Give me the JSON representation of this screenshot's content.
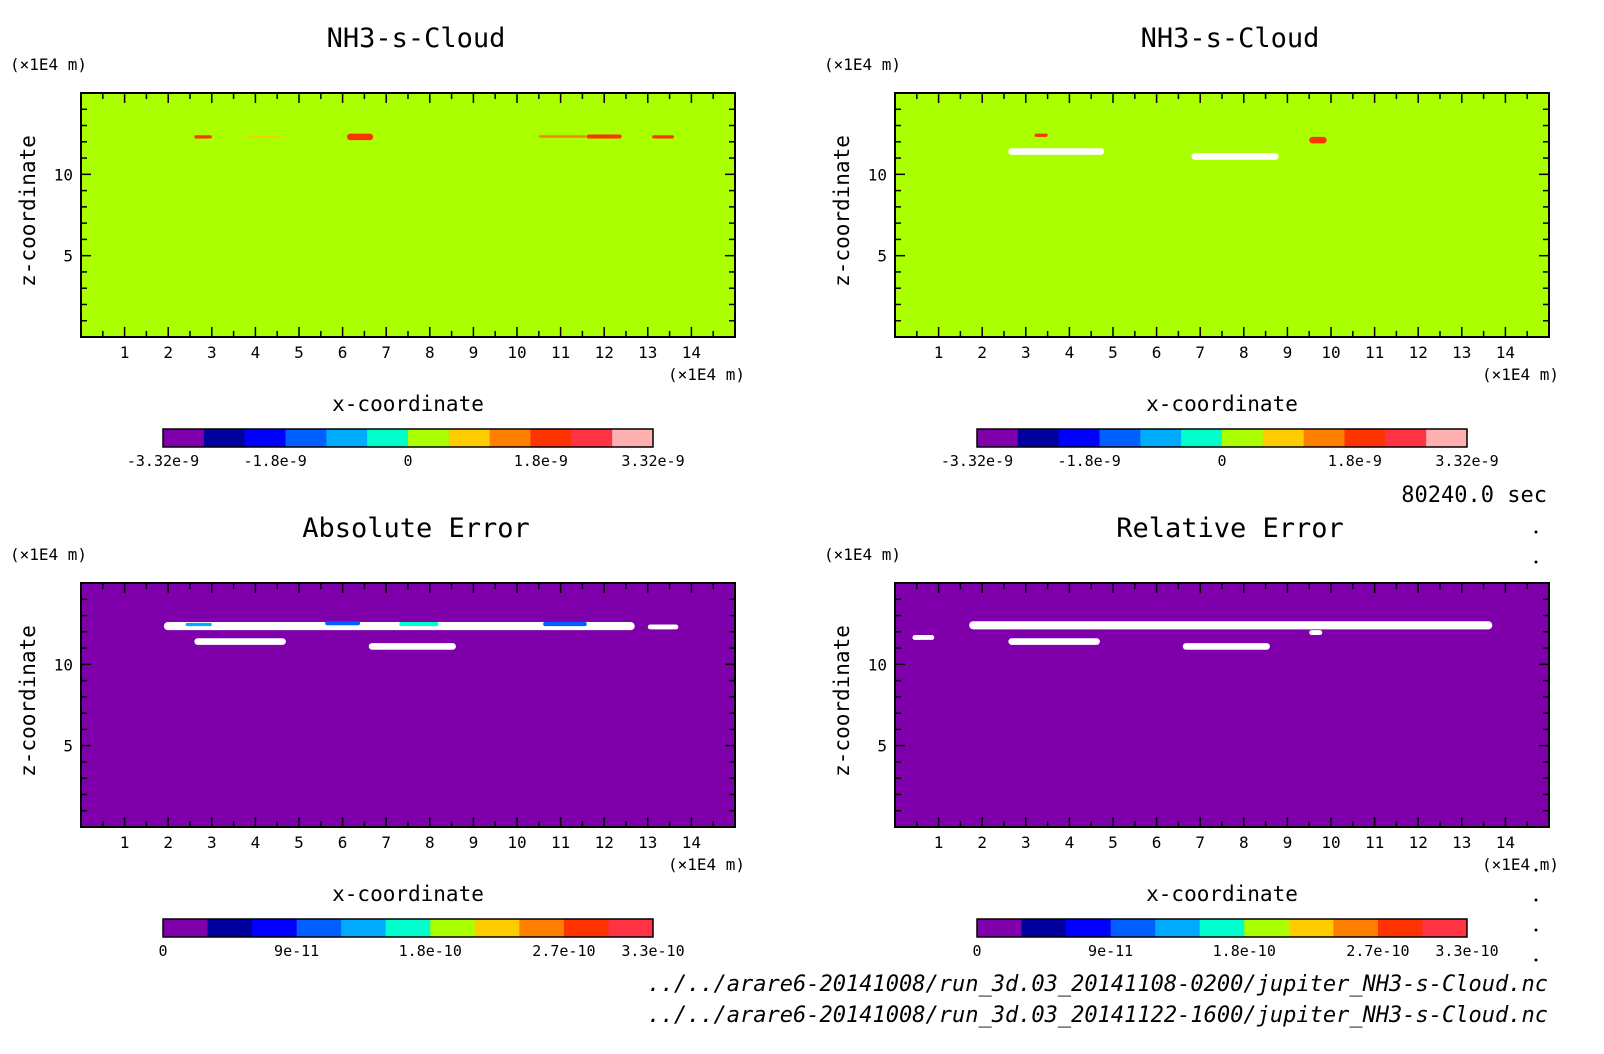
{
  "time_label": "80240.0 sec",
  "files": [
    "../../arare6-20141008/run_3d.03_20141108-0200/jupiter_NH3-s-Cloud.nc",
    "../../arare6-20141008/run_3d.03_20141122-1600/jupiter_NH3-s-Cloud.nc"
  ],
  "chart_data": [
    {
      "type": "heatmap",
      "title": "NH3-s-Cloud",
      "xlabel": "x-coordinate",
      "ylabel": "z-coordinate",
      "x_unit": "(×1E4 m)",
      "y_unit": "(×1E4 m)",
      "xlim": [
        0,
        15
      ],
      "ylim": [
        0,
        15
      ],
      "x_ticks": [
        "1",
        "2",
        "3",
        "4",
        "5",
        "6",
        "7",
        "8",
        "9",
        "10",
        "11",
        "12",
        "13",
        "14"
      ],
      "y_ticks": [
        "5",
        "10"
      ],
      "background_color": "#aaff00",
      "colorbar": {
        "colors": [
          "#7f00aa",
          "#00009f",
          "#0000ff",
          "#005fff",
          "#00aaff",
          "#00ffcc",
          "#aaff00",
          "#ffcc00",
          "#ff7f00",
          "#ff3300",
          "#ff3344",
          "#ffb0b0"
        ],
        "tick_labels": [
          "-3.32e-9",
          "-1.8e-9",
          "0",
          "1.8e-9",
          "3.32e-9"
        ],
        "tick_values": [
          -3.32e-09,
          -1.8e-09,
          0,
          1.8e-09,
          3.32e-09
        ],
        "range": [
          -3.32e-09,
          3.32e-09
        ]
      },
      "features": [
        {
          "x": [
            2.6,
            3.0
          ],
          "z": [
            12.2,
            12.4
          ],
          "color": "#ff3300"
        },
        {
          "x": [
            3.8,
            4.6
          ],
          "z": [
            12.25,
            12.35
          ],
          "color": "#ffcc00"
        },
        {
          "x": [
            6.1,
            6.7
          ],
          "z": [
            12.1,
            12.5
          ],
          "color": "#ff3300"
        },
        {
          "x": [
            10.5,
            11.6
          ],
          "z": [
            12.25,
            12.4
          ],
          "color": "#ff7f00"
        },
        {
          "x": [
            11.6,
            12.4
          ],
          "z": [
            12.2,
            12.45
          ],
          "color": "#ff3300"
        },
        {
          "x": [
            13.1,
            13.6
          ],
          "z": [
            12.2,
            12.4
          ],
          "color": "#ff3300"
        }
      ]
    },
    {
      "type": "heatmap",
      "title": "NH3-s-Cloud",
      "xlabel": "x-coordinate",
      "ylabel": "z-coordinate",
      "x_unit": "(×1E4 m)",
      "y_unit": "(×1E4 m)",
      "xlim": [
        0,
        15
      ],
      "ylim": [
        0,
        15
      ],
      "x_ticks": [
        "1",
        "2",
        "3",
        "4",
        "5",
        "6",
        "7",
        "8",
        "9",
        "10",
        "11",
        "12",
        "13",
        "14"
      ],
      "y_ticks": [
        "5",
        "10"
      ],
      "background_color": "#aaff00",
      "colorbar": {
        "colors": [
          "#7f00aa",
          "#00009f",
          "#0000ff",
          "#005fff",
          "#00aaff",
          "#00ffcc",
          "#aaff00",
          "#ffcc00",
          "#ff7f00",
          "#ff3300",
          "#ff3344",
          "#ffb0b0"
        ],
        "tick_labels": [
          "-3.32e-9",
          "-1.8e-9",
          "0",
          "1.8e-9",
          "3.32e-9"
        ],
        "tick_values": [
          -3.32e-09,
          -1.8e-09,
          0,
          1.8e-09,
          3.32e-09
        ],
        "range": [
          -3.32e-09,
          3.32e-09
        ]
      },
      "features": [
        {
          "x": [
            2.6,
            4.8
          ],
          "z": [
            11.2,
            11.6
          ],
          "color": "#ffffff"
        },
        {
          "x": [
            6.8,
            8.8
          ],
          "z": [
            10.9,
            11.3
          ],
          "color": "#ffffff"
        },
        {
          "x": [
            3.2,
            3.5
          ],
          "z": [
            12.3,
            12.5
          ],
          "color": "#ff3300"
        },
        {
          "x": [
            9.5,
            9.9
          ],
          "z": [
            11.9,
            12.3
          ],
          "color": "#ff3300"
        }
      ]
    },
    {
      "type": "heatmap",
      "title": "Absolute Error",
      "xlabel": "x-coordinate",
      "ylabel": "z-coordinate",
      "x_unit": "(×1E4 m)",
      "y_unit": "(×1E4 m)",
      "xlim": [
        0,
        15
      ],
      "ylim": [
        0,
        15
      ],
      "x_ticks": [
        "1",
        "2",
        "3",
        "4",
        "5",
        "6",
        "7",
        "8",
        "9",
        "10",
        "11",
        "12",
        "13",
        "14"
      ],
      "y_ticks": [
        "5",
        "10"
      ],
      "background_color": "#7f00aa",
      "colorbar": {
        "colors": [
          "#7f00aa",
          "#00009f",
          "#0000ff",
          "#005fff",
          "#00aaff",
          "#00ffcc",
          "#aaff00",
          "#ffcc00",
          "#ff7f00",
          "#ff3300",
          "#ff3344"
        ],
        "tick_labels": [
          "0",
          "9e-11",
          "1.8e-10",
          "2.7e-10",
          "3.3e-10"
        ],
        "tick_values": [
          0,
          9e-11,
          1.8e-10,
          2.7e-10,
          3.3e-10
        ],
        "range": [
          0,
          3.3e-10
        ]
      },
      "features": [
        {
          "x": [
            1.9,
            12.7
          ],
          "z": [
            12.1,
            12.6
          ],
          "color": "#ffffff"
        },
        {
          "x": [
            13.0,
            13.7
          ],
          "z": [
            12.15,
            12.45
          ],
          "color": "#ffffff"
        },
        {
          "x": [
            2.6,
            4.7
          ],
          "z": [
            11.2,
            11.6
          ],
          "color": "#ffffff"
        },
        {
          "x": [
            6.6,
            8.6
          ],
          "z": [
            10.9,
            11.3
          ],
          "color": "#ffffff"
        },
        {
          "x": [
            2.4,
            3.0
          ],
          "z": [
            12.35,
            12.55
          ],
          "color": "#00aaff"
        },
        {
          "x": [
            5.6,
            6.4
          ],
          "z": [
            12.4,
            12.65
          ],
          "color": "#005fff"
        },
        {
          "x": [
            7.3,
            8.2
          ],
          "z": [
            12.35,
            12.6
          ],
          "color": "#00ffcc"
        },
        {
          "x": [
            10.6,
            11.6
          ],
          "z": [
            12.35,
            12.6
          ],
          "color": "#005fff"
        }
      ]
    },
    {
      "type": "heatmap",
      "title": "Relative Error",
      "xlabel": "x-coordinate",
      "ylabel": "z-coordinate",
      "x_unit": "(×1E4 m)",
      "y_unit": "(×1E4 m)",
      "xlim": [
        0,
        15
      ],
      "ylim": [
        0,
        15
      ],
      "x_ticks": [
        "1",
        "2",
        "3",
        "4",
        "5",
        "6",
        "7",
        "8",
        "9",
        "10",
        "11",
        "12",
        "13",
        "14"
      ],
      "y_ticks": [
        "5",
        "10"
      ],
      "background_color": "#7f00aa",
      "colorbar": {
        "colors": [
          "#7f00aa",
          "#00009f",
          "#0000ff",
          "#005fff",
          "#00aaff",
          "#00ffcc",
          "#aaff00",
          "#ffcc00",
          "#ff7f00",
          "#ff3300",
          "#ff3344"
        ],
        "tick_labels": [
          "0",
          "9e-11",
          "1.8e-10",
          "2.7e-10",
          "3.3e-10"
        ],
        "tick_values": [
          0,
          9e-11,
          1.8e-10,
          2.7e-10,
          3.3e-10
        ],
        "range": [
          0,
          3.3e-10
        ]
      },
      "features": [
        {
          "x": [
            1.7,
            13.7
          ],
          "z": [
            12.15,
            12.65
          ],
          "color": "#ffffff"
        },
        {
          "x": [
            0.4,
            0.9
          ],
          "z": [
            11.5,
            11.8
          ],
          "color": "#ffffff"
        },
        {
          "x": [
            2.6,
            4.7
          ],
          "z": [
            11.2,
            11.6
          ],
          "color": "#ffffff"
        },
        {
          "x": [
            6.6,
            8.6
          ],
          "z": [
            10.9,
            11.3
          ],
          "color": "#ffffff"
        },
        {
          "x": [
            9.5,
            9.8
          ],
          "z": [
            11.8,
            12.1
          ],
          "color": "#ffffff"
        }
      ]
    }
  ]
}
